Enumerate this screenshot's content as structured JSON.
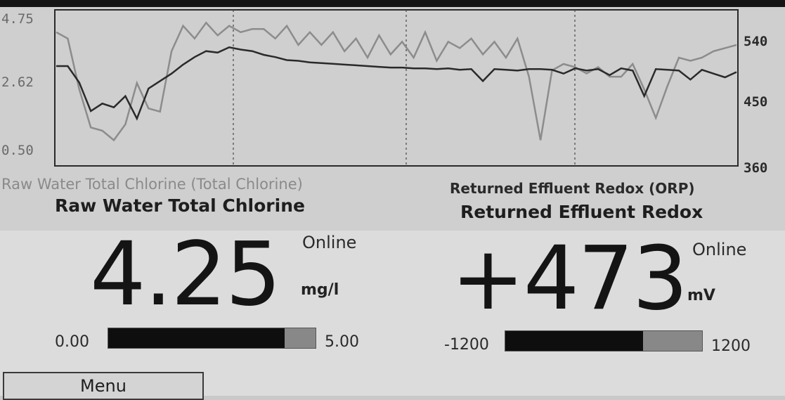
{
  "trend": {
    "left_axis_ticks": [
      "4.75",
      "2.62",
      "0.50"
    ],
    "right_axis_ticks": [
      "540",
      "450",
      "360"
    ],
    "legend_left": "Raw Water Total Chlorine (Total Chlorine)",
    "legend_right": "Returned Effluent Redox (ORP)",
    "chart_data": {
      "type": "line",
      "left_ylim": [
        0.5,
        4.75
      ],
      "right_ylim": [
        360,
        540
      ],
      "grid": "vertical dotted",
      "series": [
        {
          "name": "Raw Water Total Chlorine (Total Chlorine)",
          "axis": "left",
          "color": "#8c8c8c",
          "values": [
            4.4,
            4.2,
            2.6,
            1.4,
            1.3,
            1.0,
            1.5,
            2.8,
            2.0,
            1.9,
            3.8,
            4.6,
            4.2,
            4.7,
            4.3,
            4.6,
            4.4,
            4.5,
            4.5,
            4.2,
            4.6,
            4.0,
            4.4,
            4.0,
            4.4,
            3.8,
            4.2,
            3.6,
            4.3,
            3.7,
            4.1,
            3.6,
            4.4,
            3.5,
            4.1,
            3.9,
            4.2,
            3.7,
            4.1,
            3.6,
            4.2,
            3.0,
            1.0,
            3.2,
            3.4,
            3.3,
            3.1,
            3.3,
            3.0,
            3.0,
            3.4,
            2.6,
            1.7,
            2.7,
            3.6,
            3.5,
            3.6,
            3.8,
            3.9,
            4.0
          ]
        },
        {
          "name": "Returned Effluent Redox (ORP)",
          "axis": "right",
          "color": "#2a2a2a",
          "values": [
            480,
            480,
            458,
            420,
            430,
            425,
            440,
            410,
            450,
            460,
            470,
            482,
            492,
            500,
            498,
            505,
            502,
            500,
            495,
            492,
            488,
            487,
            485,
            484,
            483,
            482,
            481,
            480,
            479,
            478,
            478,
            477,
            477,
            476,
            477,
            475,
            476,
            460,
            476,
            475,
            474,
            476,
            476,
            475,
            470,
            477,
            474,
            476,
            468,
            477,
            474,
            440,
            476,
            475,
            474,
            462,
            475,
            470,
            465,
            472
          ]
        }
      ]
    }
  },
  "left_panel": {
    "title": "Raw Water Total Chlorine",
    "value": "4.25",
    "status": "Online",
    "unit": "mg/l",
    "range_min": "0.00",
    "range_max": "5.00",
    "level": 0.85
  },
  "right_panel": {
    "title": "Returned Effluent Redox",
    "value": "+473",
    "status": "Online",
    "unit": "mV",
    "range_min": "-1200",
    "range_max": "1200",
    "level": 0.7
  },
  "menu": {
    "label": "Menu"
  },
  "colors": {
    "dark_series": "#2a2a2a",
    "light_series": "#8c8c8c",
    "bar_fill": "#0e0e0e",
    "bar_empty": "#888888"
  }
}
